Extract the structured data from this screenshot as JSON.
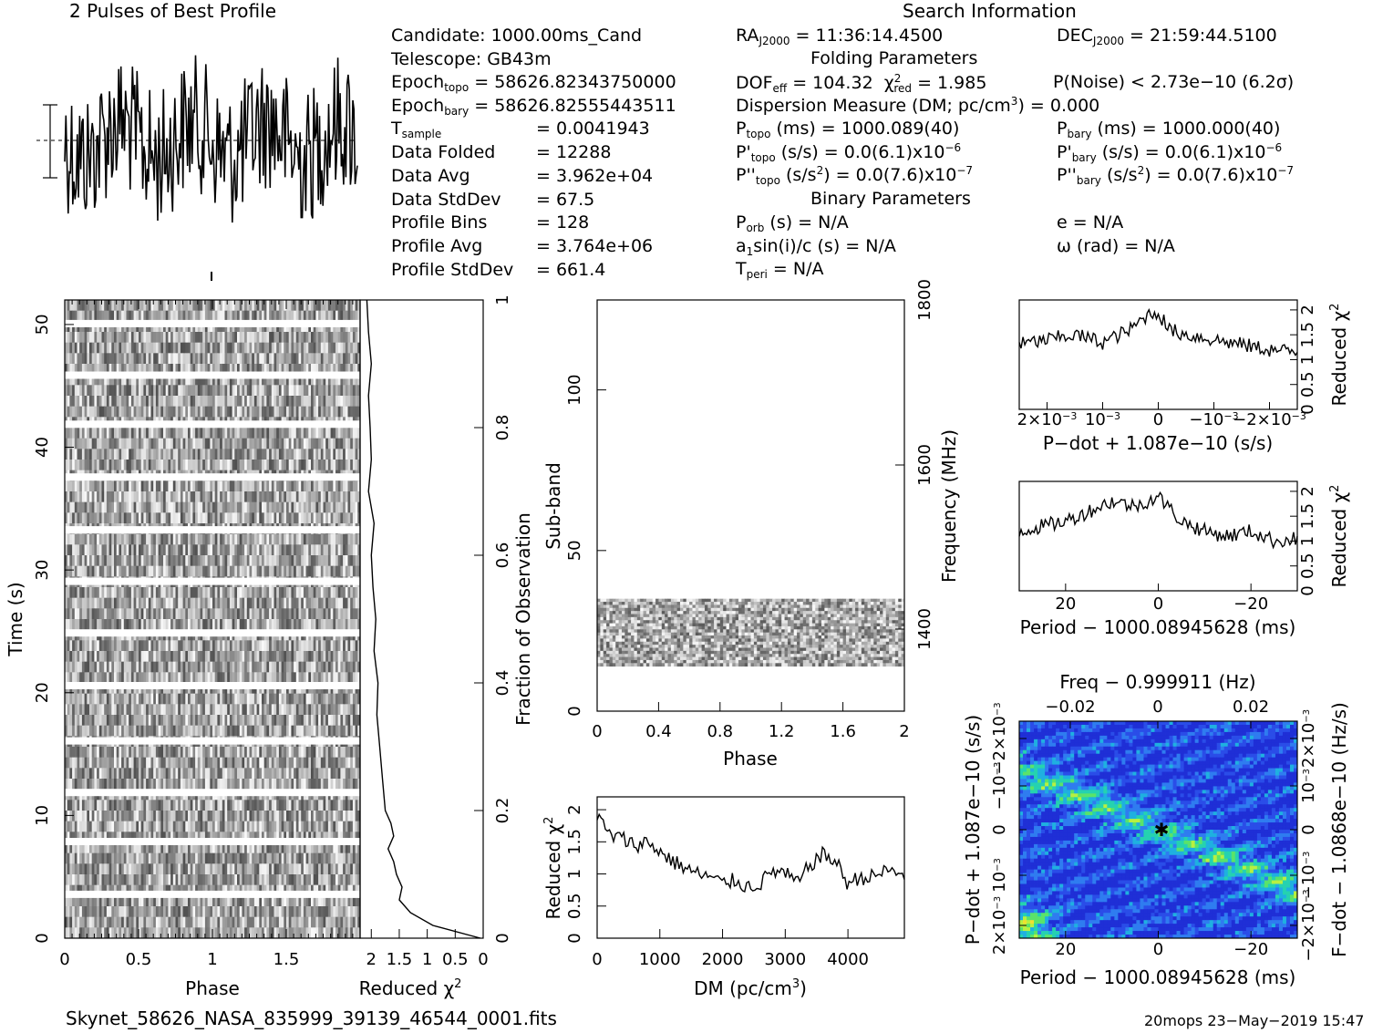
{
  "header": {
    "profile_title": "2 Pulses of Best Profile",
    "search_title": "Search Information"
  },
  "info": {
    "candidate": "Candidate:  1000.00ms_Cand",
    "telescope": "Telescope:  GB43m",
    "epoch_topo_label": "Epoch",
    "epoch_topo_sub": "topo",
    "epoch_topo_value": " = 58626.82343750000",
    "epoch_bary_label": "Epoch",
    "epoch_bary_sub": "bary",
    "epoch_bary_value": " = 58626.82555443511",
    "tsample_label": "T",
    "tsample_sub": "sample",
    "tsample_value": "=   0.0041943",
    "rows": [
      {
        "label": "Data Folded",
        "value": "=   12288"
      },
      {
        "label": "Data Avg",
        "value": "=   3.962e+04"
      },
      {
        "label": "Data StdDev",
        "value": "=   67.5"
      },
      {
        "label": "Profile Bins",
        "value": "=   128"
      },
      {
        "label": "Profile Avg",
        "value": "=   3.764e+06"
      },
      {
        "label": "Profile StdDev",
        "value": "=   661.4"
      }
    ],
    "ra_label": "RA",
    "ra_sub": "J2000",
    "ra_value": " = 11:36:14.4500",
    "dec_label": "DEC",
    "dec_sub": "J2000",
    "dec_value": " = 21:59:44.5100",
    "folding_title": "Folding Parameters",
    "dof_label": "DOF",
    "dof_sub": "eff",
    "dof_value": " = 104.32",
    "chi_label": "χ",
    "chi_sup": "2",
    "chi_sub": "red",
    "chi_value": " = 1.985",
    "pnoise": "P(Noise) < 2.73e−10   (6.2σ)",
    "dm_text": "Dispersion Measure (DM; pc/cm",
    "dm_sup": "3",
    "dm_value": ") = 0.000",
    "ptopo_label": "P",
    "ptopo_sub": "topo",
    "ptopo_value": " (ms) =  1000.089(40)",
    "pbary_label": "P",
    "pbary_sub": "bary",
    "pbary_value": " (ms) =  1000.000(40)",
    "pdtopo_label": "P'",
    "pdtopo_sub": "topo",
    "pdtopo_value": " (s/s) = 0.0(6.1)x10",
    "pdtopo_exp": "−6",
    "pdbary_label": "P'",
    "pdbary_sub": "bary",
    "pdbary_value": " (s/s) = 0.0(6.1)x10",
    "pdbary_exp": "−6",
    "pddtopo_label": "P''",
    "pddtopo_sub": "topo",
    "pddtopo_value": " (s/s",
    "pddtopo_sup": "2",
    "pddtopo_value2": ") = 0.0(7.6)x10",
    "pddtopo_exp": "−7",
    "pddbary_label": "P''",
    "pddbary_sub": "bary",
    "pddbary_value": " (s/s",
    "pddbary_sup": "2",
    "pddbary_value2": ") = 0.0(7.6)x10",
    "pddbary_exp": "−7",
    "binary_title": "Binary Parameters",
    "porb_label": "P",
    "porb_sub": "orb",
    "porb_value": " (s) = N/A",
    "e_text": "e = N/A",
    "a1_label": "a",
    "a1_sub": "1",
    "a1_value": "sin(i)/c (s) = N/A",
    "omega_text": "ω (rad) = N/A",
    "tperi_label": "T",
    "tperi_sub": "peri",
    "tperi_value": " = N/A"
  },
  "footer": {
    "filename": "Skynet_58626_NASA_835999_39139_46544_0001.fits",
    "stamp": "20mops 23−May−2019 15:47"
  },
  "chart_data": [
    {
      "id": "profile",
      "type": "line",
      "title": "2 Pulses of Best Profile",
      "x": "phase 0 to 2 (128 bins per pulse, noise-like)",
      "xlim": [
        0,
        2
      ]
    },
    {
      "id": "time-phase",
      "type": "heatmap",
      "xlabel": "Phase",
      "ylabel": "Time (s)",
      "xticks": [
        "0",
        "0.5",
        "1",
        "1.5"
      ],
      "yticks": [
        "0",
        "10",
        "20",
        "30",
        "40",
        "50"
      ],
      "xlim": [
        0,
        2
      ],
      "ylim": [
        0,
        52
      ]
    },
    {
      "id": "time-chi",
      "type": "line",
      "xlabel": "Reduced χ",
      "xlabel_sup": "2",
      "xticks": [
        "2",
        "1.5",
        "1",
        "0.5",
        "0"
      ],
      "right_label": "Fraction of Observation",
      "right_ticks": [
        "0",
        "0.2",
        "0.4",
        "0.6",
        "0.8",
        "1"
      ],
      "xlim": [
        2.2,
        0
      ],
      "frac": [
        0.0,
        0.02,
        0.04,
        0.06,
        0.08,
        0.1,
        0.12,
        0.14,
        0.16,
        0.18,
        0.2,
        0.25,
        0.3,
        0.35,
        0.4,
        0.45,
        0.5,
        0.55,
        0.6,
        0.65,
        0.7,
        0.75,
        0.8,
        0.85,
        0.9,
        0.95,
        1.0
      ],
      "chi": [
        0.05,
        0.9,
        1.3,
        1.5,
        1.45,
        1.55,
        1.6,
        1.7,
        1.6,
        1.65,
        1.75,
        1.8,
        1.85,
        1.9,
        1.88,
        1.95,
        1.92,
        1.97,
        2.0,
        1.95,
        2.05,
        2.0,
        2.02,
        2.05,
        2.0,
        2.05,
        2.08
      ]
    },
    {
      "id": "subband",
      "type": "heatmap",
      "xlabel": "Phase",
      "ylabel": "Sub-band",
      "right_label": "Frequency (MHz)",
      "xticks": [
        "0",
        "0.4",
        "0.8",
        "1.2",
        "1.6",
        "2"
      ],
      "yticks": [
        "0",
        "50",
        "100"
      ],
      "right_ticks": [
        "1400",
        "1600",
        "1800"
      ],
      "xlim": [
        0,
        2
      ],
      "ylim": [
        0,
        128
      ],
      "filled_subbands": [
        14,
        35
      ]
    },
    {
      "id": "dm-chi",
      "type": "line",
      "xlabel": "DM (pc/cm",
      "xlabel_sup": "3",
      "xlabel_end": ")",
      "ylabel": "Reduced χ",
      "ylabel_sup": "2",
      "xticks": [
        "0",
        "1000",
        "2000",
        "3000",
        "4000"
      ],
      "yticks": [
        "0",
        "0.5",
        "1",
        "1.5",
        "2"
      ],
      "xlim": [
        0,
        4900
      ],
      "ylim": [
        0,
        2.2
      ],
      "x": [
        0,
        200,
        400,
        600,
        800,
        1000,
        1200,
        1400,
        1600,
        1800,
        2000,
        2200,
        2400,
        2600,
        2800,
        3000,
        3200,
        3400,
        3600,
        3800,
        4000,
        4200,
        4400,
        4600,
        4900
      ],
      "y": [
        1.9,
        1.6,
        1.55,
        1.45,
        1.5,
        1.35,
        1.2,
        1.1,
        1.0,
        0.95,
        0.85,
        0.9,
        0.8,
        0.85,
        1.05,
        1.0,
        0.85,
        1.15,
        1.3,
        1.2,
        0.85,
        0.95,
        0.95,
        1.05,
        1.0
      ]
    },
    {
      "id": "pdot-chi",
      "type": "line",
      "xlabel": "P−dot + 1.087e−10 (s/s)",
      "ylabel": "Reduced χ",
      "ylabel_sup": "2",
      "xticks": [
        "2×10",
        "10",
        "0",
        "−10",
        "−2×10"
      ],
      "xticks_exp": "−3",
      "yticks": [
        "0",
        "0.5",
        "1",
        "1.5",
        "2"
      ],
      "xlim": [
        0.0025,
        -0.0025
      ],
      "ylim": [
        0,
        2.2
      ],
      "x": [
        0.0025,
        0.002,
        0.0015,
        0.001,
        0.0005,
        0.0002,
        0,
        -0.0002,
        -0.0005,
        -0.001,
        -0.0015,
        -0.002,
        -0.0025
      ],
      "y": [
        1.3,
        1.4,
        1.5,
        1.35,
        1.6,
        1.9,
        1.95,
        1.6,
        1.5,
        1.4,
        1.3,
        1.2,
        1.15
      ]
    },
    {
      "id": "period-chi",
      "type": "line",
      "xlabel": "Period − 1000.08945628 (ms)",
      "ylabel": "Reduced χ",
      "ylabel_sup": "2",
      "xticks": [
        "20",
        "0",
        "−20"
      ],
      "yticks": [
        "0",
        "0.5",
        "1",
        "1.5",
        "2"
      ],
      "xlim": [
        30,
        -30
      ],
      "ylim": [
        0,
        2.2
      ],
      "x": [
        30,
        25,
        20,
        15,
        10,
        5,
        0,
        -5,
        -10,
        -15,
        -20,
        -25,
        -30
      ],
      "y": [
        1.2,
        1.3,
        1.4,
        1.6,
        1.8,
        1.7,
        1.9,
        1.4,
        1.2,
        1.1,
        1.2,
        1.0,
        1.05
      ]
    },
    {
      "id": "pdot-period",
      "type": "heatmap",
      "top_label": "Freq − 0.999911 (Hz)",
      "top_ticks": [
        "−0.02",
        "0",
        "0.02"
      ],
      "xlabel": "Period − 1000.08945628 (ms)",
      "xticks": [
        "20",
        "0",
        "−20"
      ],
      "ylabel": "P−dot + 1.087e−10 (s/s)",
      "yticks": [
        "2×10",
        "10",
        "0",
        "−10",
        "−2×10"
      ],
      "yticks_exp": "−3",
      "right_label": "F−dot − 1.0868e−10 (Hz/s)",
      "right_ticks": [
        "−2×10",
        "−10",
        "0",
        "10",
        "2×10"
      ],
      "right_ticks_exp": "−3",
      "xlim": [
        30,
        -30
      ],
      "best": [
        0,
        0
      ]
    }
  ]
}
